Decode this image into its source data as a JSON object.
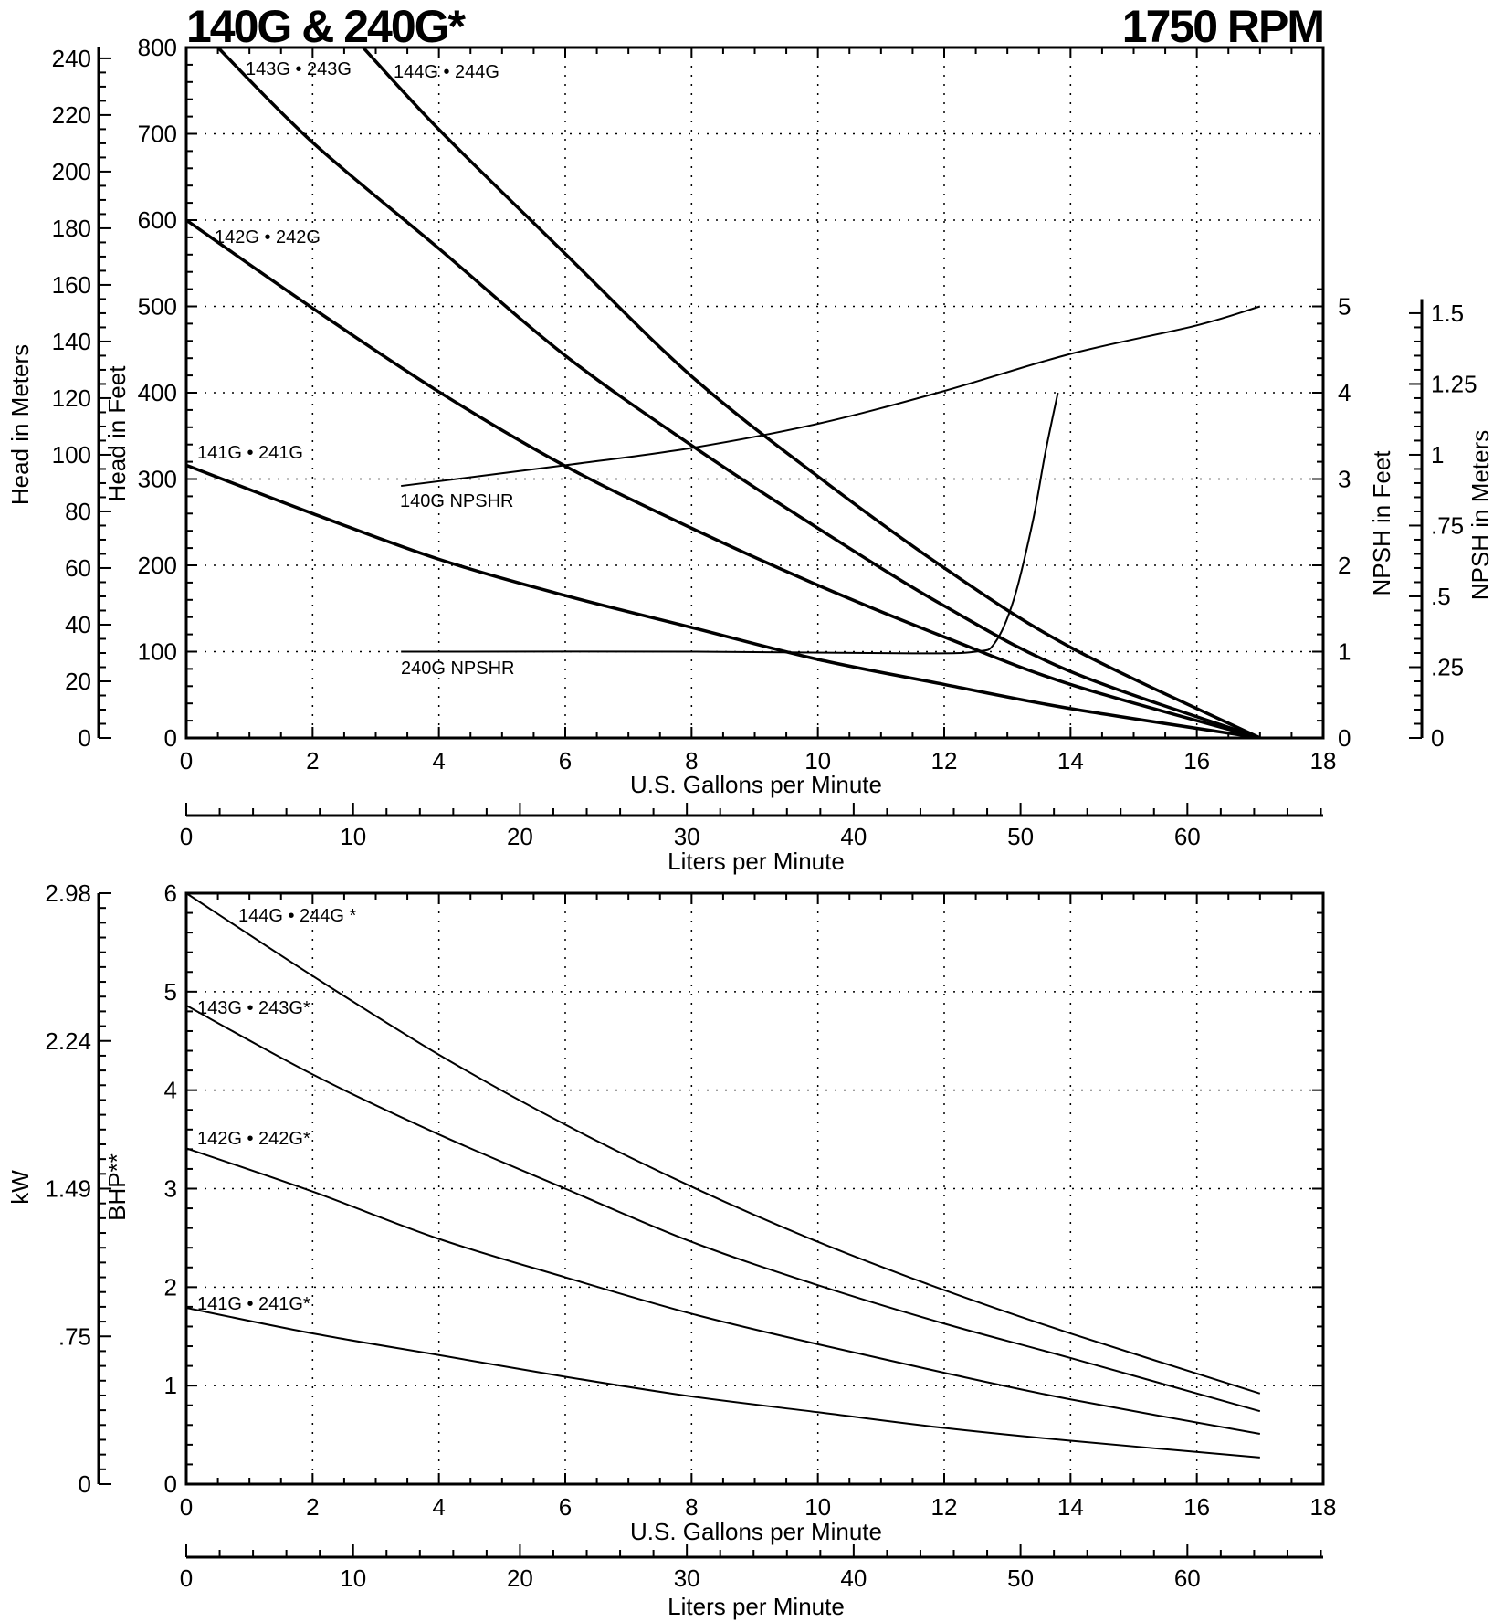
{
  "chart_data": [
    {
      "type": "line",
      "title": "140G & 240G*",
      "subtitle": "1750 RPM",
      "xlabel": "U.S. Gallons per Minute",
      "xlabel_secondary": "Liters per Minute",
      "ylabel": "Head in Feet",
      "ylabel_secondary": "Head in Meters",
      "ylabel_right": "NPSH in Feet",
      "ylabel_right_secondary": "NPSH in Meters",
      "xlim": [
        0,
        18
      ],
      "ylim": [
        0,
        800
      ],
      "npsh_ft_lim": [
        0,
        6
      ],
      "grid": true,
      "x_ticks": [
        0,
        2,
        4,
        6,
        8,
        10,
        12,
        14,
        16,
        18
      ],
      "y_ticks": [
        0,
        100,
        200,
        300,
        400,
        500,
        600,
        700,
        800
      ],
      "y_meter_ticks": [
        0,
        20,
        40,
        60,
        80,
        100,
        120,
        140,
        160,
        180,
        200,
        220,
        240
      ],
      "npsh_ft_ticks": [
        0,
        1,
        2,
        3,
        4,
        5
      ],
      "npsh_m_ticks": [
        "0",
        ".25",
        ".5",
        ".75",
        "1",
        "1.25",
        "1.5"
      ],
      "lpm_ticks": [
        0,
        10,
        20,
        30,
        40,
        50,
        60
      ],
      "series": [
        {
          "name": "141G • 241G",
          "axis": "head",
          "x": [
            0,
            2,
            4,
            6,
            8,
            10,
            12,
            14,
            17
          ],
          "y": [
            316,
            260,
            207,
            165,
            128,
            91,
            62,
            34,
            0
          ]
        },
        {
          "name": "142G • 242G",
          "axis": "head",
          "x": [
            0,
            2,
            4,
            6,
            8,
            10,
            12,
            14,
            17
          ],
          "y": [
            600,
            498,
            401,
            315,
            243,
            177,
            117,
            62,
            0
          ]
        },
        {
          "name": "143G • 243G",
          "axis": "head",
          "x": [
            0.5,
            2,
            4,
            6,
            8,
            10,
            12,
            14,
            17
          ],
          "y": [
            800,
            690,
            567,
            443,
            339,
            243,
            153,
            77,
            0
          ]
        },
        {
          "name": "144G • 244G",
          "axis": "head",
          "x": [
            2.8,
            4,
            6,
            8,
            10,
            12,
            14,
            17
          ],
          "y": [
            800,
            705,
            561,
            419,
            303,
            197,
            105,
            0
          ]
        },
        {
          "name": "140G NPSHR",
          "axis": "npsh",
          "x": [
            3.4,
            6,
            8,
            10,
            12,
            14,
            16,
            17
          ],
          "y": [
            2.92,
            3.16,
            3.36,
            3.64,
            4.02,
            4.45,
            4.78,
            5.0
          ]
        },
        {
          "name": "240G NPSHR",
          "axis": "npsh",
          "x": [
            3.4,
            8,
            11.5,
            12.5,
            12.8,
            13.1,
            13.4,
            13.6,
            13.8
          ],
          "y": [
            1.0,
            1.0,
            0.98,
            1.0,
            1.1,
            1.6,
            2.5,
            3.3,
            4.0
          ]
        }
      ]
    },
    {
      "type": "line",
      "xlabel": "U.S. Gallons per Minute",
      "xlabel_secondary": "Liters per Minute",
      "ylabel": "BHP**",
      "ylabel_secondary": "kW",
      "xlim": [
        0,
        18
      ],
      "ylim": [
        0,
        6
      ],
      "grid": true,
      "x_ticks": [
        0,
        2,
        4,
        6,
        8,
        10,
        12,
        14,
        16,
        18
      ],
      "y_ticks": [
        0,
        1,
        2,
        3,
        4,
        5,
        6
      ],
      "kw_ticks": [
        {
          "label": "0",
          "bhp": 0
        },
        {
          "label": ".75",
          "bhp": 1.5
        },
        {
          "label": "1.49",
          "bhp": 3
        },
        {
          "label": "2.24",
          "bhp": 4.5
        },
        {
          "label": "2.98",
          "bhp": 6
        }
      ],
      "lpm_ticks": [
        0,
        10,
        20,
        30,
        40,
        50,
        60
      ],
      "series": [
        {
          "name": "144G • 244G *",
          "x": [
            0,
            2,
            4,
            6,
            8,
            10,
            12,
            14,
            17
          ],
          "y": [
            6.0,
            5.16,
            4.36,
            3.65,
            3.02,
            2.46,
            1.97,
            1.53,
            0.92
          ]
        },
        {
          "name": "143G • 243G*",
          "x": [
            0,
            2,
            4,
            6,
            8,
            10,
            12,
            14,
            17
          ],
          "y": [
            4.86,
            4.16,
            3.55,
            3.0,
            2.46,
            2.02,
            1.63,
            1.28,
            0.74
          ]
        },
        {
          "name": "142G • 242G*",
          "x": [
            0,
            2,
            4,
            6,
            8,
            10,
            12,
            14,
            17
          ],
          "y": [
            3.41,
            2.97,
            2.49,
            2.1,
            1.73,
            1.42,
            1.13,
            0.86,
            0.51
          ]
        },
        {
          "name": "141G • 241G*",
          "x": [
            0,
            2,
            4,
            6,
            8,
            10,
            12,
            14,
            17
          ],
          "y": [
            1.79,
            1.53,
            1.31,
            1.09,
            0.89,
            0.73,
            0.57,
            0.44,
            0.27
          ]
        }
      ]
    }
  ]
}
